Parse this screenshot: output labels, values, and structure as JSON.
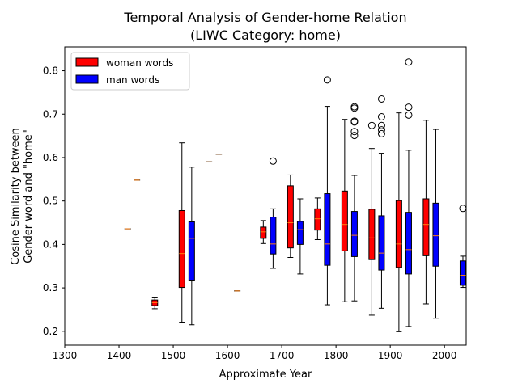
{
  "chart_data": {
    "type": "box",
    "title": "Temporal Analysis of Gender-home Relation",
    "subtitle": "(LIWC Category: home)",
    "xlabel": "Approximate Year",
    "ylabel_line1": "Cosine Similarity between",
    "ylabel_line2": "Gender word and \"home\"",
    "xlim": [
      1300,
      2040
    ],
    "ylim": [
      0.168,
      0.855
    ],
    "xticks": [
      1300,
      1400,
      1500,
      1600,
      1700,
      1800,
      1900,
      2000
    ],
    "yticks": [
      0.2,
      0.3,
      0.4,
      0.5,
      0.6,
      0.7,
      0.8
    ],
    "xtick_labels": [
      "1300",
      "1400",
      "1500",
      "1600",
      "1700",
      "1800",
      "1900",
      "2000"
    ],
    "ytick_labels": [
      "0.2",
      "0.3",
      "0.4",
      "0.5",
      "0.6",
      "0.7",
      "0.8"
    ],
    "legend": {
      "position": "upper-left",
      "items": [
        {
          "label": "woman words",
          "color": "#ff0000"
        },
        {
          "label": "man words",
          "color": "#0000ff"
        }
      ]
    },
    "series": [
      {
        "name": "woman words",
        "color": "#ff0000",
        "boxes": [
          {
            "x": 1416,
            "whislo": 0.436,
            "q1": 0.436,
            "med": 0.436,
            "q3": 0.436,
            "whishi": 0.436,
            "fliers": []
          },
          {
            "x": 1433,
            "whislo": 0.548,
            "q1": 0.548,
            "med": 0.548,
            "q3": 0.548,
            "whishi": 0.548,
            "fliers": []
          },
          {
            "x": 1466,
            "whislo": 0.252,
            "q1": 0.259,
            "med": 0.266,
            "q3": 0.272,
            "whishi": 0.277,
            "fliers": []
          },
          {
            "x": 1516,
            "whislo": 0.221,
            "q1": 0.301,
            "med": 0.379,
            "q3": 0.478,
            "whishi": 0.634,
            "fliers": []
          },
          {
            "x": 1566,
            "whislo": 0.59,
            "q1": 0.59,
            "med": 0.59,
            "q3": 0.59,
            "whishi": 0.59,
            "fliers": []
          },
          {
            "x": 1666,
            "whislo": 0.402,
            "q1": 0.414,
            "med": 0.429,
            "q3": 0.44,
            "whishi": 0.455,
            "fliers": []
          },
          {
            "x": 1716,
            "whislo": 0.37,
            "q1": 0.392,
            "med": 0.45,
            "q3": 0.535,
            "whishi": 0.56,
            "fliers": []
          },
          {
            "x": 1766,
            "whislo": 0.411,
            "q1": 0.433,
            "med": 0.459,
            "q3": 0.482,
            "whishi": 0.507,
            "fliers": []
          },
          {
            "x": 1816,
            "whislo": 0.268,
            "q1": 0.385,
            "med": 0.446,
            "q3": 0.523,
            "whishi": 0.688,
            "fliers": []
          },
          {
            "x": 1866,
            "whislo": 0.237,
            "q1": 0.365,
            "med": 0.415,
            "q3": 0.481,
            "whishi": 0.621,
            "fliers": [
              0.674
            ]
          },
          {
            "x": 1916,
            "whislo": 0.199,
            "q1": 0.347,
            "med": 0.401,
            "q3": 0.501,
            "whishi": 0.703,
            "fliers": []
          },
          {
            "x": 1966,
            "whislo": 0.263,
            "q1": 0.374,
            "med": 0.446,
            "q3": 0.505,
            "whishi": 0.686,
            "fliers": []
          }
        ]
      },
      {
        "name": "man words",
        "color": "#0000ff",
        "boxes": [
          {
            "x": 1534,
            "whislo": 0.215,
            "q1": 0.316,
            "med": 0.414,
            "q3": 0.452,
            "whishi": 0.578,
            "fliers": []
          },
          {
            "x": 1584,
            "whislo": 0.608,
            "q1": 0.608,
            "med": 0.608,
            "q3": 0.608,
            "whishi": 0.608,
            "fliers": []
          },
          {
            "x": 1618,
            "whislo": 0.293,
            "q1": 0.293,
            "med": 0.293,
            "q3": 0.293,
            "whishi": 0.293,
            "fliers": []
          },
          {
            "x": 1684,
            "whislo": 0.345,
            "q1": 0.378,
            "med": 0.401,
            "q3": 0.463,
            "whishi": 0.482,
            "fliers": [
              0.592
            ]
          },
          {
            "x": 1734,
            "whislo": 0.332,
            "q1": 0.4,
            "med": 0.434,
            "q3": 0.453,
            "whishi": 0.505,
            "fliers": []
          },
          {
            "x": 1784,
            "whislo": 0.261,
            "q1": 0.352,
            "med": 0.401,
            "q3": 0.517,
            "whishi": 0.718,
            "fliers": [
              0.779
            ]
          },
          {
            "x": 1834,
            "whislo": 0.27,
            "q1": 0.372,
            "med": 0.421,
            "q3": 0.476,
            "whishi": 0.559,
            "fliers": [
              0.651,
              0.66,
              0.682,
              0.684,
              0.714,
              0.717
            ]
          },
          {
            "x": 1884,
            "whislo": 0.253,
            "q1": 0.341,
            "med": 0.38,
            "q3": 0.466,
            "whishi": 0.61,
            "fliers": [
              0.655,
              0.664,
              0.674,
              0.694,
              0.735
            ]
          },
          {
            "x": 1934,
            "whislo": 0.211,
            "q1": 0.332,
            "med": 0.388,
            "q3": 0.474,
            "whishi": 0.617,
            "fliers": [
              0.698,
              0.716,
              0.82
            ]
          },
          {
            "x": 1984,
            "whislo": 0.23,
            "q1": 0.35,
            "med": 0.42,
            "q3": 0.495,
            "whishi": 0.665,
            "fliers": []
          },
          {
            "x": 2034,
            "whislo": 0.301,
            "q1": 0.306,
            "med": 0.329,
            "q3": 0.362,
            "whishi": 0.373,
            "fliers": [
              0.483
            ]
          }
        ]
      }
    ]
  }
}
